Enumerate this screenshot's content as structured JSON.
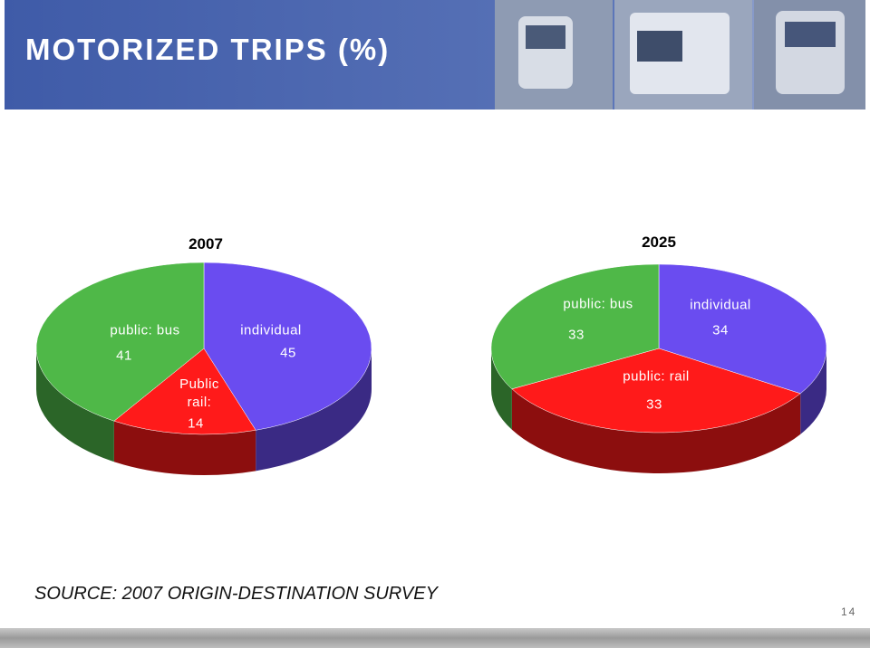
{
  "title": "MOTORIZED TRIPS (%)",
  "chart_data": [
    {
      "type": "pie",
      "title": "2007",
      "categories": [
        "individual",
        "Public rail:",
        "public: bus"
      ],
      "values": [
        45,
        14,
        41
      ],
      "colors": [
        "#6a4cf0",
        "#ff1a1a",
        "#4fb848"
      ]
    },
    {
      "type": "pie",
      "title": "2025",
      "categories": [
        "individual",
        "public: rail",
        "public: bus"
      ],
      "values": [
        34,
        33,
        33
      ],
      "colors": [
        "#6a4cf0",
        "#ff1a1a",
        "#4fb848"
      ]
    }
  ],
  "source": "SOURCE: 2007 ORIGIN-DESTINATION SURVEY",
  "page_number": 14
}
